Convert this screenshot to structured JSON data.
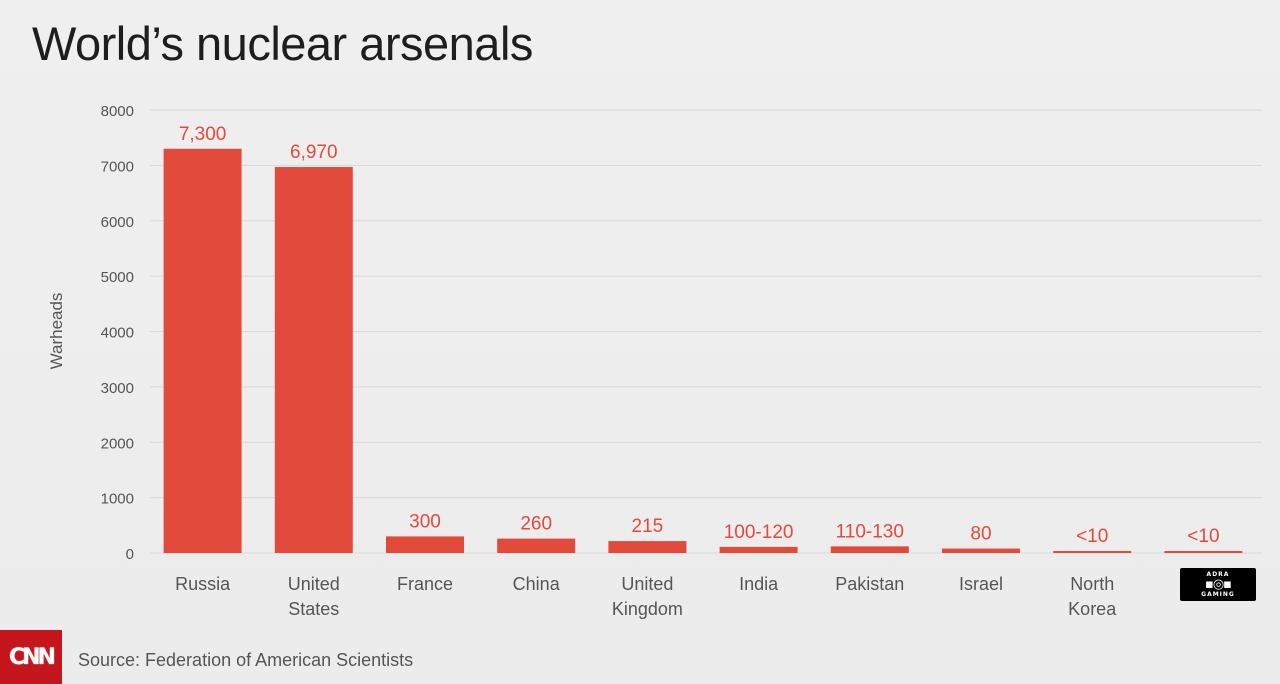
{
  "title": "World’s nuclear arsenals",
  "source": "Source: Federation of American Scientists",
  "logo": "CNN",
  "watermark": {
    "top": "ADRA",
    "bottom": "GAMING"
  },
  "colors": {
    "bar": "#e24a3b",
    "label": "#e24a3b",
    "grid": "#d9d9d9",
    "text": "#555555"
  },
  "chart_data": {
    "type": "bar",
    "title": "World’s nuclear arsenals",
    "xlabel": "",
    "ylabel": "Warheads",
    "ylim": [
      0,
      8000
    ],
    "yticks": [
      0,
      1000,
      2000,
      3000,
      4000,
      5000,
      6000,
      7000,
      8000
    ],
    "grid": true,
    "categories": [
      [
        "Russia"
      ],
      [
        "United",
        "States"
      ],
      [
        "France"
      ],
      [
        "China"
      ],
      [
        "United",
        "Kingdom"
      ],
      [
        "India"
      ],
      [
        "Pakistan"
      ],
      [
        "Israel"
      ],
      [
        "North",
        "Korea"
      ],
      []
    ],
    "values": [
      7300,
      6970,
      300,
      260,
      215,
      110,
      120,
      80,
      10,
      10
    ],
    "data_labels": [
      "7,300",
      "6,970",
      "300",
      "260",
      "215",
      "100-120",
      "110-130",
      "80",
      "<10",
      "<10"
    ]
  }
}
